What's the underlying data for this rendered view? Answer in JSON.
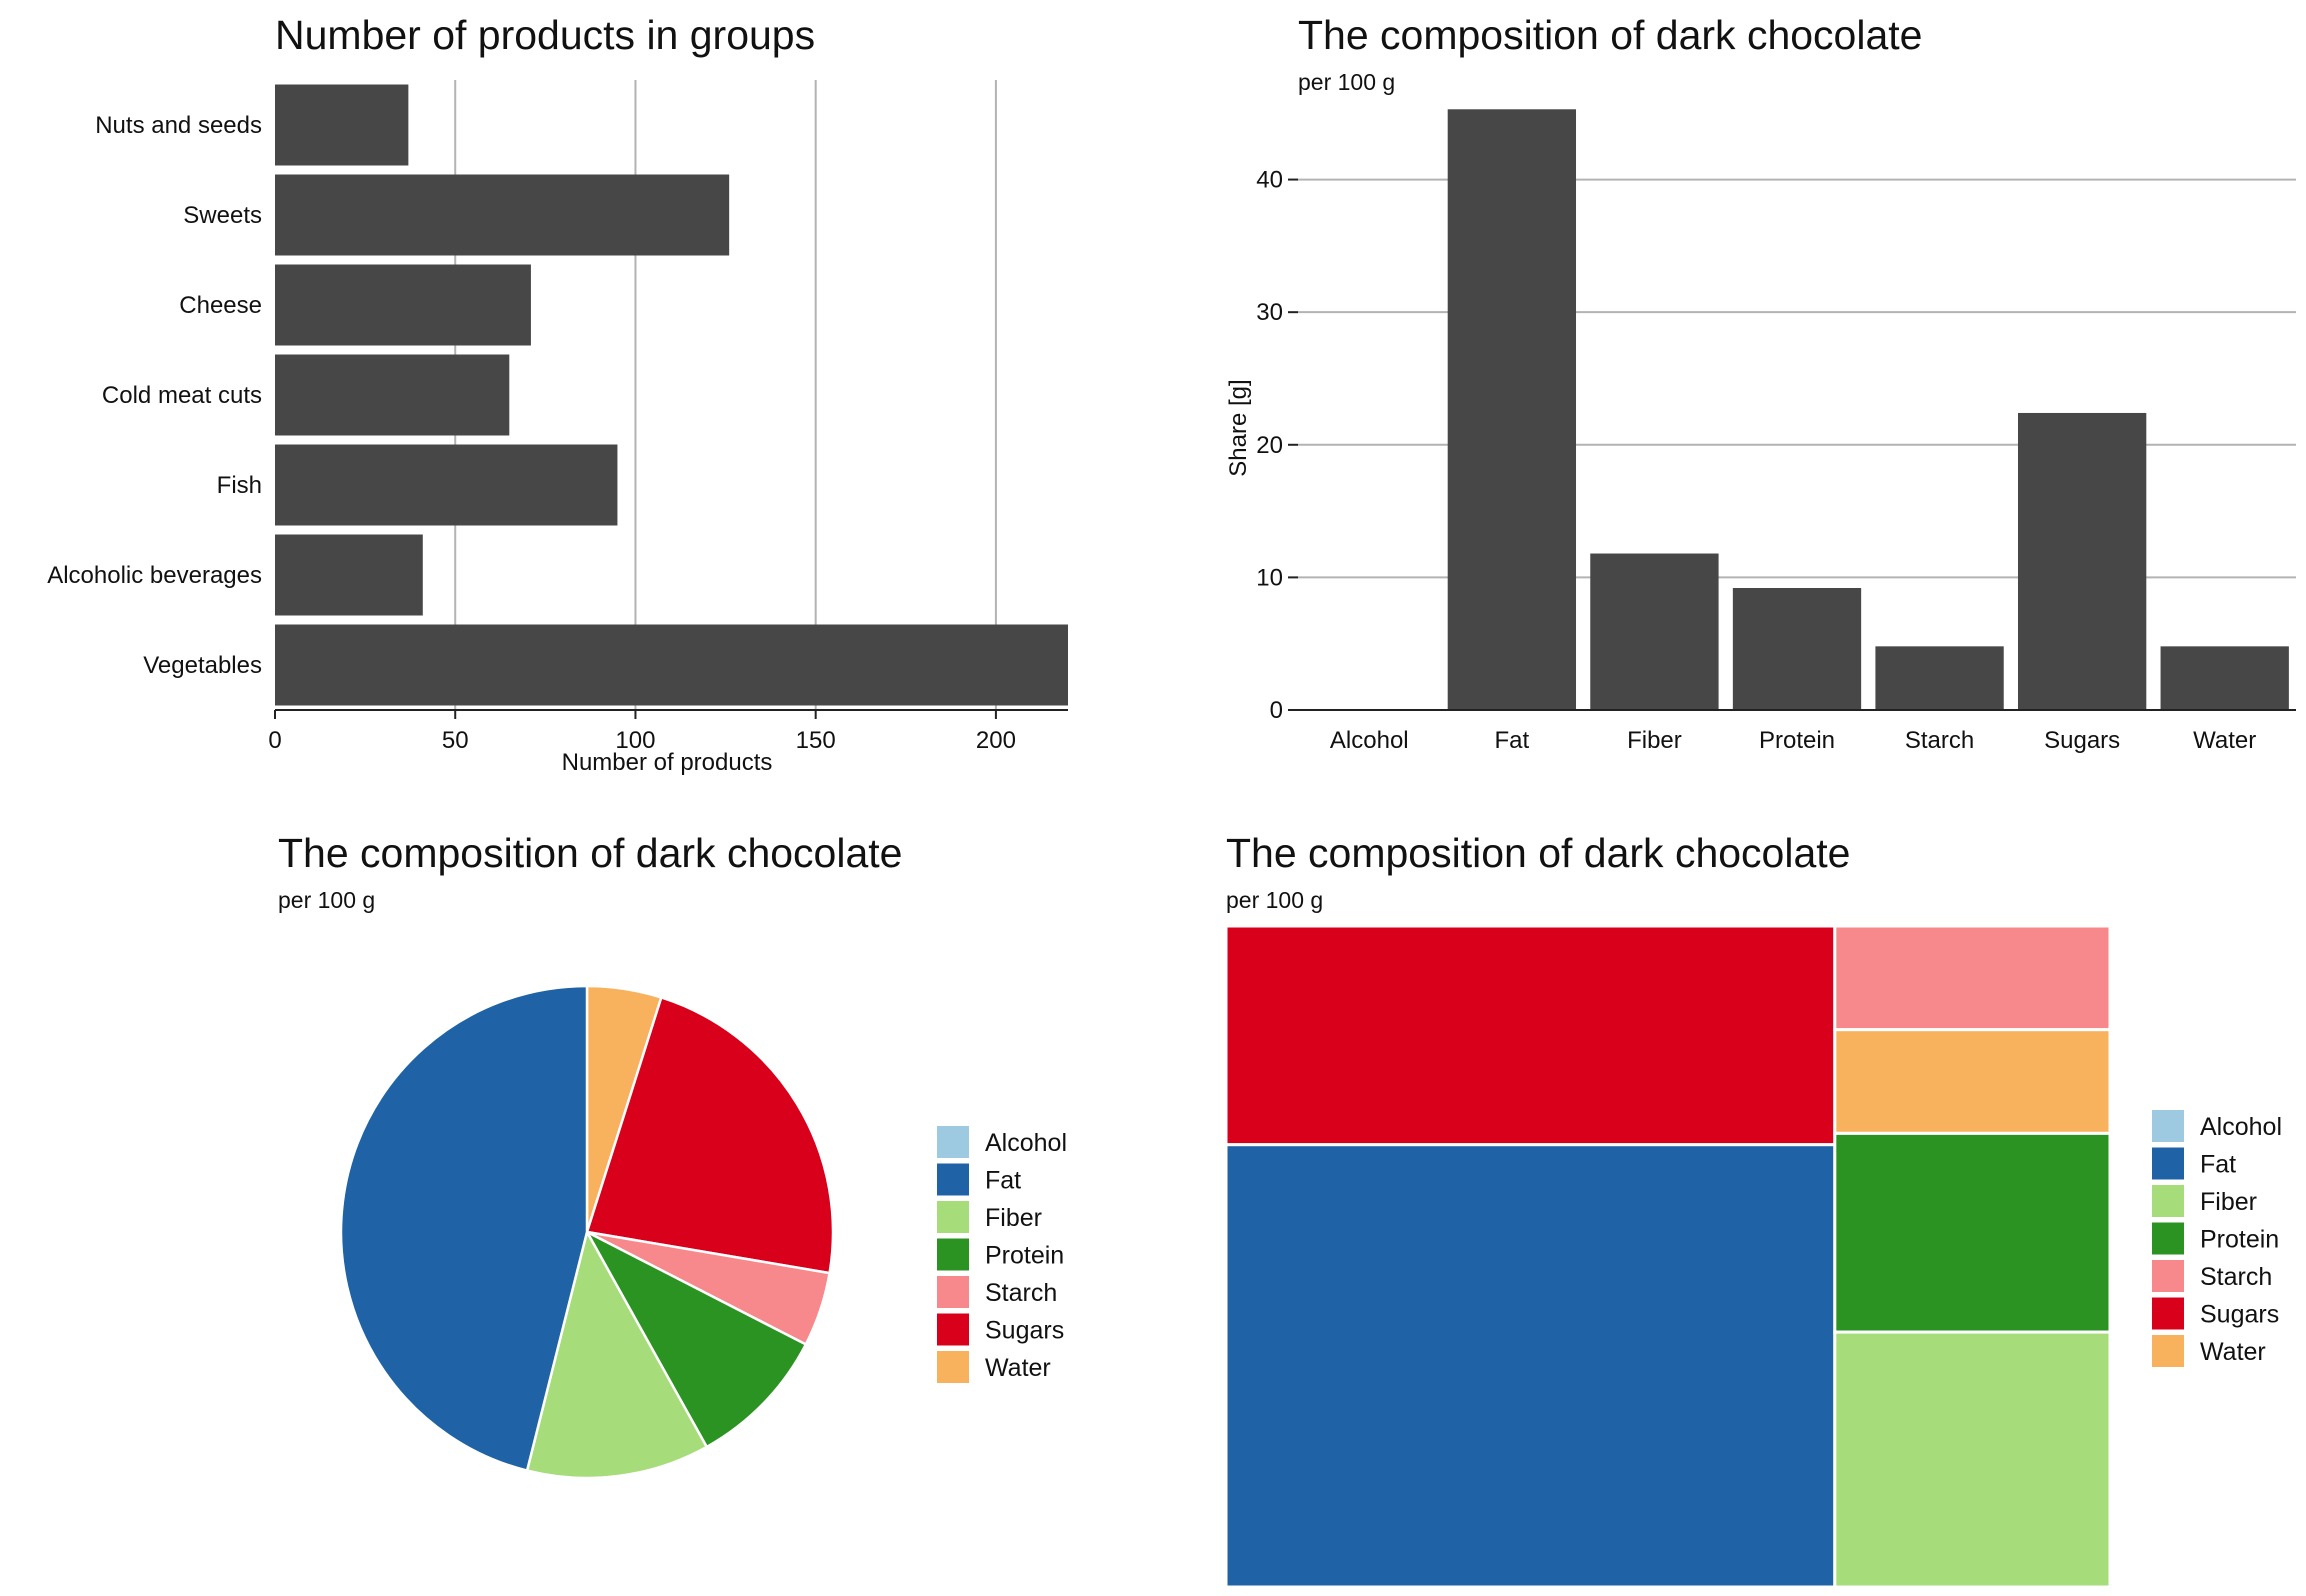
{
  "colors": {
    "bar": "#474747",
    "grid": "#b3b3b3",
    "axis": "#222222",
    "components": {
      "Alcohol": "#9ecae1",
      "Fat": "#1f63a6",
      "Fiber": "#a6dc7a",
      "Protein": "#2b9322",
      "Starch": "#f7888b",
      "Sugars": "#d9001b",
      "Water": "#f8b25e"
    }
  },
  "chart_data": [
    {
      "type": "bar",
      "orientation": "horizontal",
      "title": "Number of products in groups",
      "xlabel": "Number of products",
      "ylabel": "",
      "categories": [
        "Nuts and seeds",
        "Sweets",
        "Cheese",
        "Cold meat cuts",
        "Fish",
        "Alcoholic beverages",
        "Vegetables"
      ],
      "values": [
        37,
        126,
        71,
        65,
        95,
        41,
        220
      ],
      "xlim": [
        0,
        220
      ],
      "xticks": [
        0,
        50,
        100,
        150,
        200
      ],
      "grid": "vertical"
    },
    {
      "type": "bar",
      "title": "The composition of dark chocolate",
      "subtitle": "per 100 g",
      "xlabel": "",
      "ylabel": "Share [g]",
      "categories": [
        "Alcohol",
        "Fat",
        "Fiber",
        "Protein",
        "Starch",
        "Sugars",
        "Water"
      ],
      "values": [
        0,
        45.3,
        11.8,
        9.2,
        4.8,
        22.4,
        4.8
      ],
      "ylim": [
        0,
        46
      ],
      "yticks": [
        0,
        10,
        20,
        30,
        40
      ],
      "grid": "horizontal"
    },
    {
      "type": "pie",
      "title": "The composition of dark chocolate",
      "subtitle": "per 100 g",
      "categories": [
        "Alcohol",
        "Fat",
        "Fiber",
        "Protein",
        "Starch",
        "Sugars",
        "Water"
      ],
      "values": [
        0,
        45.3,
        11.8,
        9.2,
        4.8,
        22.4,
        4.8
      ],
      "legend": "right"
    },
    {
      "type": "treemap",
      "title": "The composition of dark chocolate",
      "subtitle": "per 100 g",
      "categories": [
        "Alcohol",
        "Fat",
        "Fiber",
        "Protein",
        "Starch",
        "Sugars",
        "Water"
      ],
      "values": [
        0,
        45.3,
        11.8,
        9.2,
        4.8,
        22.4,
        4.8
      ],
      "legend": "right"
    }
  ]
}
